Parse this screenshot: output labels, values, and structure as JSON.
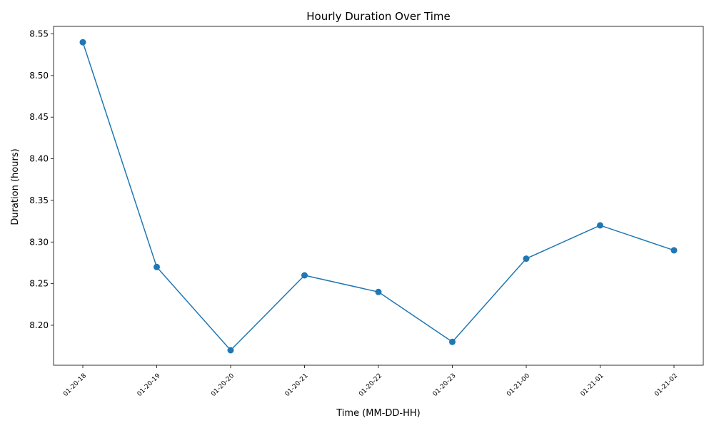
{
  "chart_data": {
    "type": "line",
    "title": "Hourly Duration Over Time",
    "xlabel": "Time (MM-DD-HH)",
    "ylabel": "Duration (hours)",
    "categories": [
      "01-20-18",
      "01-20-19",
      "01-20-20",
      "01-20-21",
      "01-20-22",
      "01-20-23",
      "01-21-00",
      "01-21-01",
      "01-21-02"
    ],
    "series": [
      {
        "values": [
          8.54,
          8.27,
          8.17,
          8.26,
          8.24,
          8.18,
          8.28,
          8.32,
          8.29
        ],
        "color": "#1f77b4",
        "marker": "circle"
      }
    ],
    "yticks": [
      "8.20",
      "8.25",
      "8.30",
      "8.35",
      "8.40",
      "8.45",
      "8.50",
      "8.55"
    ],
    "ylim": [
      8.152,
      8.559
    ],
    "grid": false,
    "legend": "none"
  }
}
